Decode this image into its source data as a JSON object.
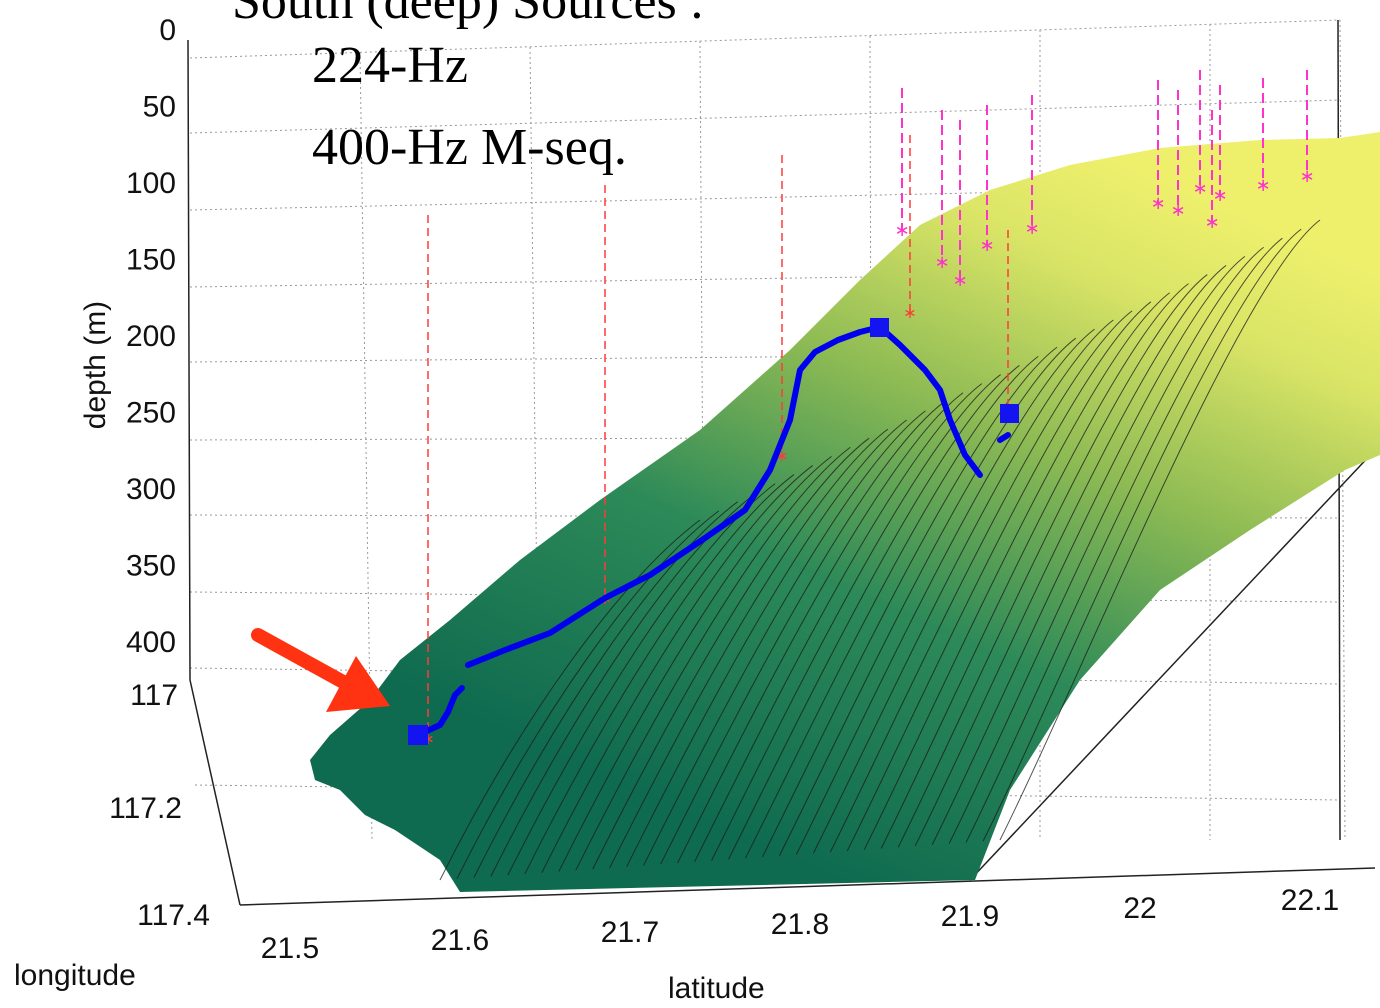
{
  "chart_data": {
    "type": "surface",
    "title": "South (deep) Sources :",
    "subtitle_lines": [
      "224-Hz",
      "400-Hz M-seq."
    ],
    "xlabel": "latitude",
    "ylabel": "longitude",
    "zlabel": "depth (m)",
    "x_ticks": [
      "21.5",
      "21.6",
      "21.7",
      "21.8",
      "21.9",
      "22",
      "22.1"
    ],
    "y_ticks": [
      "117",
      "117.2",
      "117.4"
    ],
    "z_ticks": [
      "0",
      "50",
      "100",
      "150",
      "200",
      "250",
      "300",
      "350",
      "400"
    ],
    "xlim": [
      21.5,
      22.1
    ],
    "ylim": [
      117,
      117.4
    ],
    "zlim": [
      0,
      400
    ],
    "z_reversed": true,
    "grid": true,
    "colormap": [
      "#0f6b4f",
      "#e8ee68"
    ],
    "colors": {
      "track": "#0000ee",
      "source_marker": "#1414f0",
      "south_moorings": "#ff3a3a",
      "north_moorings": "#ff33cc",
      "arrow": "#ff3311"
    }
  }
}
